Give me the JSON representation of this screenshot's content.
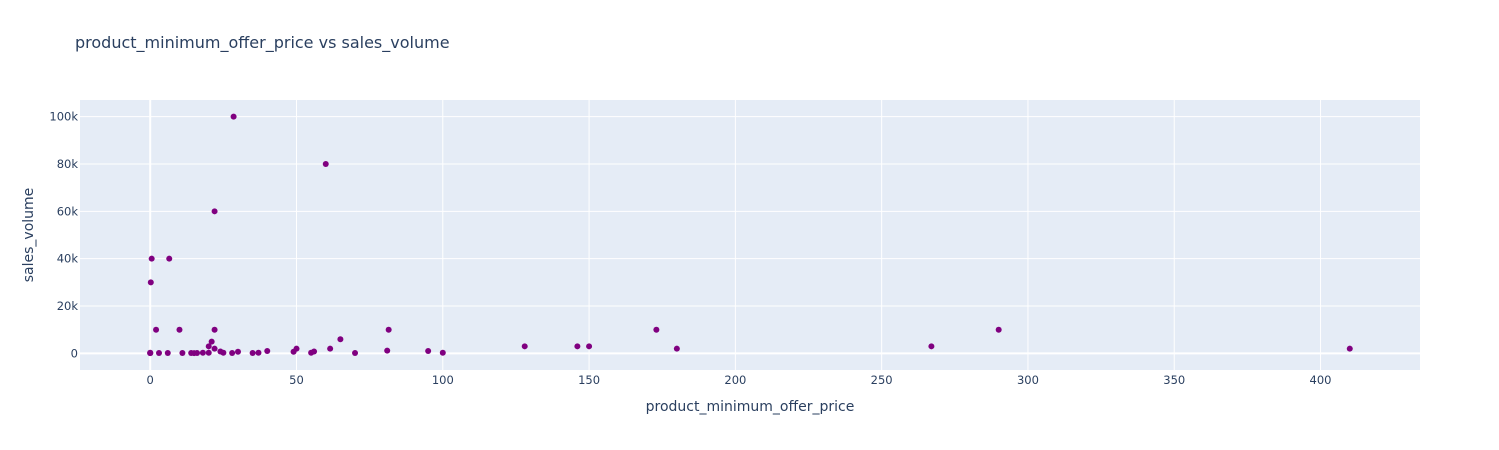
{
  "chart_data": {
    "type": "scatter",
    "title": "product_minimum_offer_price vs sales_volume",
    "xlabel": "product_minimum_offer_price",
    "ylabel": "sales_volume",
    "xlim": [
      -24,
      434
    ],
    "ylim": [
      -7000,
      107000
    ],
    "x_ticks": [
      0,
      50,
      100,
      150,
      200,
      250,
      300,
      350,
      400
    ],
    "y_ticks": [
      0,
      20000,
      40000,
      60000,
      80000,
      100000
    ],
    "y_tick_labels": [
      "0",
      "20k",
      "40k",
      "60k",
      "80k",
      "100k"
    ],
    "grid": true,
    "legend": "none",
    "colors": {
      "marker": "#800080",
      "plot_bg": "#e5ecf6",
      "grid": "#ffffff",
      "text": "#2a3f5f"
    },
    "series": [
      {
        "points": [
          [
            0,
            100
          ],
          [
            0,
            200
          ],
          [
            0,
            300
          ],
          [
            0.2,
            30000
          ],
          [
            0.5,
            40000
          ],
          [
            2,
            10000
          ],
          [
            3,
            200
          ],
          [
            6,
            200
          ],
          [
            6.5,
            40000
          ],
          [
            10,
            10000
          ],
          [
            11,
            200
          ],
          [
            14,
            200
          ],
          [
            15,
            100
          ],
          [
            16,
            200
          ],
          [
            18,
            300
          ],
          [
            20,
            300
          ],
          [
            20,
            3000
          ],
          [
            21,
            5000
          ],
          [
            22,
            2000
          ],
          [
            22,
            10000
          ],
          [
            22,
            60000
          ],
          [
            24,
            800
          ],
          [
            25,
            300
          ],
          [
            28,
            200
          ],
          [
            28.5,
            100000
          ],
          [
            30,
            700
          ],
          [
            35,
            200
          ],
          [
            37,
            300
          ],
          [
            40,
            1000
          ],
          [
            49,
            700
          ],
          [
            50,
            2000
          ],
          [
            55,
            300
          ],
          [
            56,
            800
          ],
          [
            60,
            80000
          ],
          [
            61.5,
            2000
          ],
          [
            65,
            6000
          ],
          [
            70,
            200
          ],
          [
            81,
            1200
          ],
          [
            81.5,
            10000
          ],
          [
            95,
            1000
          ],
          [
            100,
            300
          ],
          [
            128,
            3000
          ],
          [
            146,
            3000
          ],
          [
            150,
            3000
          ],
          [
            173,
            10000
          ],
          [
            180,
            2000
          ],
          [
            267,
            3000
          ],
          [
            290,
            10000
          ],
          [
            410,
            2000
          ]
        ]
      }
    ]
  }
}
